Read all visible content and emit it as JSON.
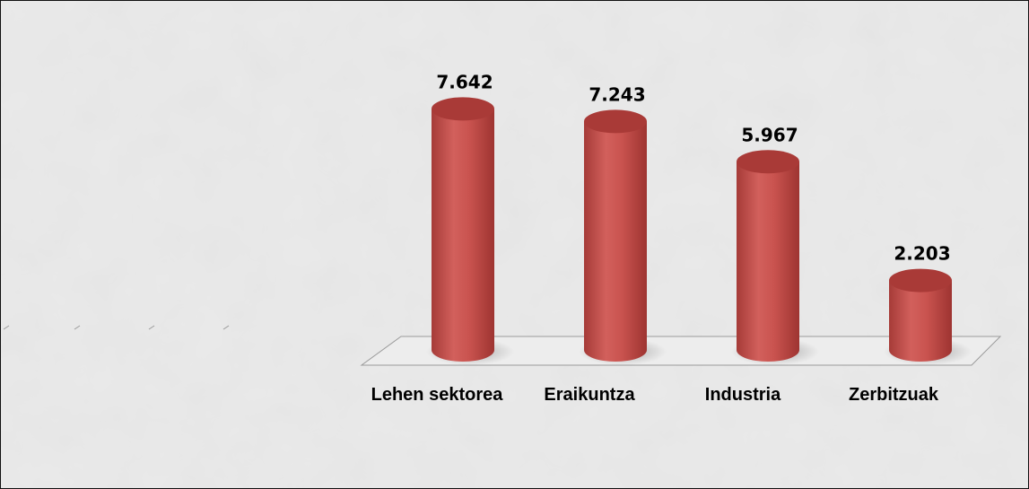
{
  "chart_data": {
    "type": "bar",
    "style": "3d-cylinder",
    "categories": [
      "Lehen sektorea",
      "Eraikuntza",
      "Industria",
      "Zerbitzuak"
    ],
    "values": [
      7.642,
      7.243,
      5.967,
      2.203
    ],
    "value_labels": [
      "7.642",
      "7.243",
      "5.967",
      "2.203"
    ],
    "bar_color": "#c0504d",
    "bar_top_color": "#a93a37",
    "background_color": "#e9e9e9",
    "title": "",
    "xlabel": "",
    "ylabel": "",
    "ylim": [
      0,
      8.5
    ],
    "grid": false,
    "legend": "none"
  }
}
